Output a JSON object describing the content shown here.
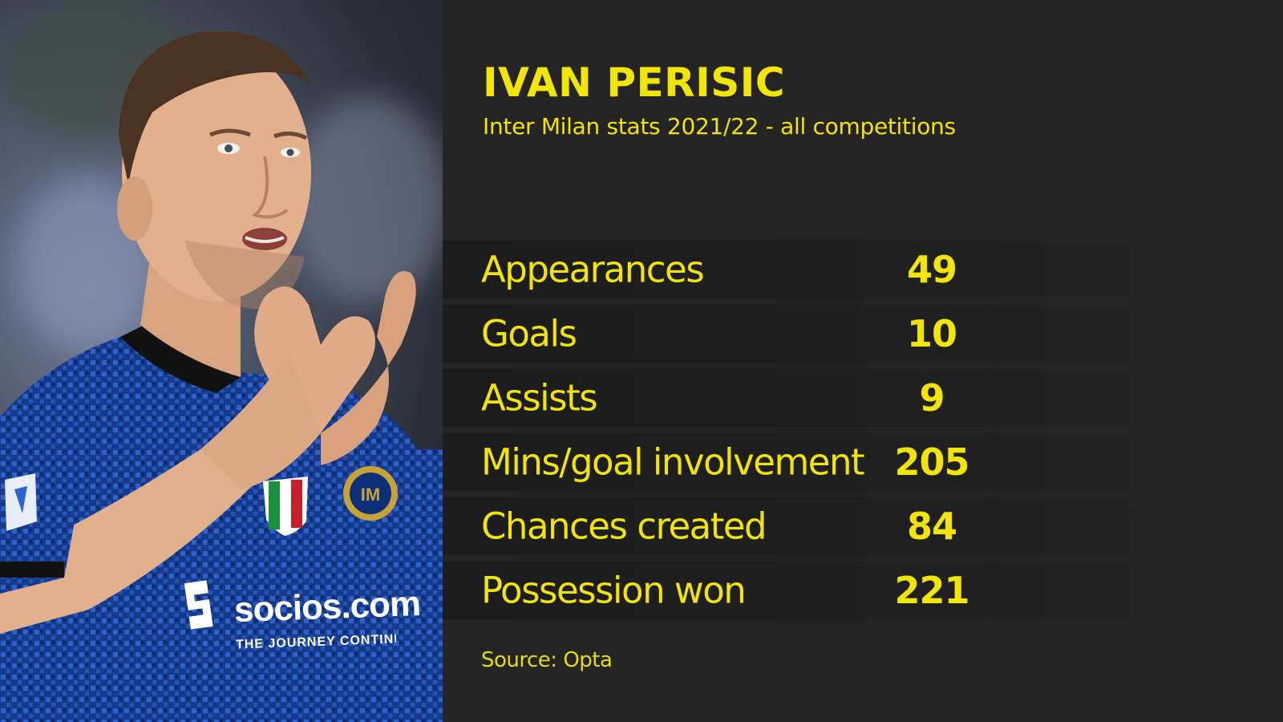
{
  "graphic": {
    "title": "IVAN PERISIC",
    "subtitle": "Inter Milan stats 2021/22 - all competitions",
    "stats": [
      {
        "label": "Appearances",
        "value": "49"
      },
      {
        "label": "Goals",
        "value": "10"
      },
      {
        "label": "Assists",
        "value": "9"
      },
      {
        "label": "Mins/goal involvement",
        "value": "205"
      },
      {
        "label": "Chances created",
        "value": "84"
      },
      {
        "label": "Possession won",
        "value": "221"
      }
    ],
    "source": "Source: Opta"
  },
  "photo": {
    "shirt_sponsor": "socios.com",
    "shirt_tagline": "THE JOURNEY CONTINUES"
  },
  "colors": {
    "accent": "#f2e600",
    "panel_background": "#242424",
    "shirt_blue": "#1f4fb8"
  }
}
